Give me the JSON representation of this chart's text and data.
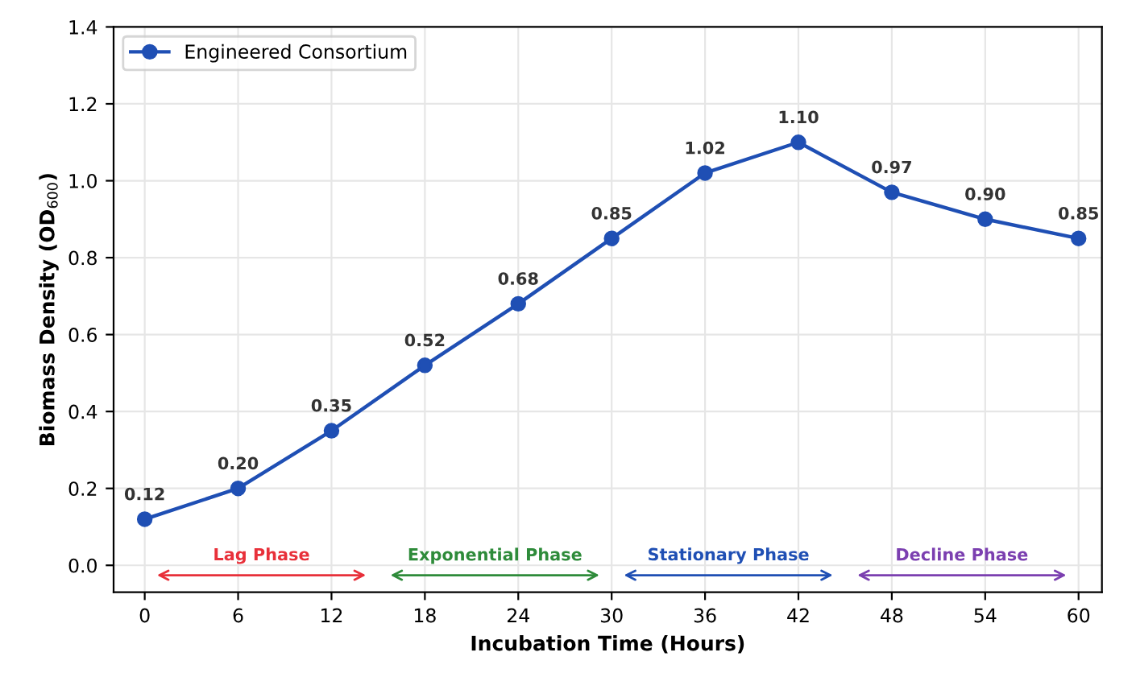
{
  "chart_data": {
    "type": "line",
    "xlabel": "Incubation Time (Hours)",
    "ylabel": "Biomass Density (OD$_{600}$)",
    "x": [
      0,
      6,
      12,
      18,
      24,
      30,
      36,
      42,
      48,
      54,
      60
    ],
    "series": [
      {
        "name": "Engineered Consortium",
        "color": "#1f4fb4",
        "values": [
          0.12,
          0.2,
          0.35,
          0.52,
          0.68,
          0.85,
          1.02,
          1.1,
          0.97,
          0.9,
          0.85
        ],
        "value_labels": [
          "0.12",
          "0.20",
          "0.35",
          "0.52",
          "0.68",
          "0.85",
          "1.02",
          "1.10",
          "0.97",
          "0.90",
          "0.85"
        ]
      }
    ],
    "xlim": [
      -2,
      61.5
    ],
    "xticks": [
      0,
      6,
      12,
      18,
      24,
      30,
      36,
      42,
      48,
      54,
      60
    ],
    "ylim": [
      -0.07,
      1.4
    ],
    "yticks": [
      {
        "value": 0,
        "label": "0.0"
      },
      {
        "value": 0.2,
        "label": "0.2"
      },
      {
        "value": 0.4,
        "label": "0.4"
      },
      {
        "value": 0.6,
        "label": "0.6"
      },
      {
        "value": 0.8,
        "label": "0.8"
      },
      {
        "value": 1.0,
        "label": "1.0"
      },
      {
        "value": 1.2,
        "label": "1.2"
      },
      {
        "value": 1.4,
        "label": "1.4"
      }
    ],
    "annotations": [
      "Lag Phase",
      "Exponential Phase",
      "Stationary Phase",
      "Decline Phase"
    ],
    "grid": true,
    "legend": "top left",
    "marker": "circle",
    "line_style": "solid"
  }
}
